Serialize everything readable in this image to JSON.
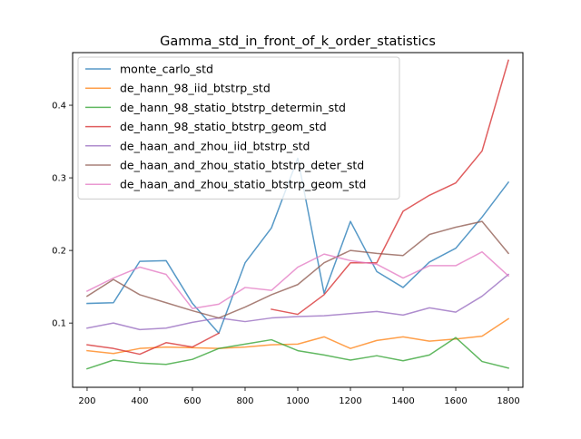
{
  "chart_data": {
    "type": "line",
    "title": "Gamma_std_in_front_of_k_order_statistics",
    "xlabel": "",
    "ylabel": "",
    "x": [
      200,
      300,
      400,
      500,
      600,
      700,
      800,
      900,
      1000,
      1100,
      1200,
      1300,
      1400,
      1500,
      1600,
      1700,
      1800
    ],
    "xlim": [
      145,
      1855
    ],
    "ylim": [
      0.0115,
      0.4725
    ],
    "xticks": [
      200,
      400,
      600,
      800,
      1000,
      1200,
      1400,
      1600,
      1800
    ],
    "yticks": [
      0.1,
      0.2,
      0.3,
      0.4
    ],
    "ytick_labels": [
      "0.1",
      "0.2",
      "0.3",
      "0.4"
    ],
    "grid": false,
    "legend_position": "top-left",
    "series": [
      {
        "name": "monte_carlo_std",
        "color": "#1f77b4",
        "values": [
          0.127,
          0.128,
          0.185,
          0.186,
          0.127,
          0.086,
          0.183,
          0.231,
          0.327,
          0.141,
          0.24,
          0.171,
          0.149,
          0.184,
          0.203,
          0.246,
          0.294
        ]
      },
      {
        "name": "de_hann_98_iid_btstrp_std",
        "color": "#ff7f0e",
        "values": [
          0.062,
          0.058,
          0.065,
          0.067,
          0.066,
          0.065,
          0.067,
          0.07,
          0.071,
          0.081,
          0.065,
          0.076,
          0.081,
          0.075,
          0.078,
          0.082,
          0.106
        ]
      },
      {
        "name": "de_hann_98_statio_btstrp_determin_std",
        "color": "#2ca02c",
        "values": [
          0.037,
          0.049,
          0.045,
          0.043,
          0.05,
          0.065,
          0.071,
          0.077,
          0.062,
          0.056,
          0.049,
          0.055,
          0.048,
          0.056,
          0.08,
          0.047,
          0.038
        ]
      },
      {
        "name": "de_hann_98_statio_btstrp_geom_std",
        "color": "#d62728",
        "values": [
          0.07,
          0.065,
          0.057,
          0.073,
          0.067,
          0.086,
          null,
          0.119,
          0.112,
          0.139,
          0.183,
          0.183,
          0.254,
          0.276,
          0.293,
          0.337,
          0.462
        ]
      },
      {
        "name": "de_haan_and_zhou_iid_btstrp_std",
        "color": "#9467bd",
        "values": [
          0.093,
          0.1,
          0.091,
          0.093,
          0.101,
          0.107,
          0.102,
          0.107,
          0.109,
          0.11,
          0.113,
          0.116,
          0.111,
          0.121,
          0.115,
          0.137,
          0.167
        ]
      },
      {
        "name": "de_haan_and_zhou_statio_btstrp_deter_std",
        "color": "#8c564b",
        "values": [
          0.137,
          0.16,
          0.139,
          0.128,
          0.117,
          0.107,
          0.122,
          0.139,
          0.153,
          0.183,
          0.2,
          0.196,
          0.193,
          0.222,
          0.232,
          0.24,
          0.196
        ]
      },
      {
        "name": "de_haan_and_zhou_statio_btstrp_geom_std",
        "color": "#e377c2",
        "values": [
          0.144,
          0.162,
          0.177,
          0.167,
          0.12,
          0.126,
          0.149,
          0.145,
          0.177,
          0.195,
          0.186,
          0.181,
          0.162,
          0.179,
          0.179,
          0.198,
          0.165
        ]
      }
    ]
  }
}
